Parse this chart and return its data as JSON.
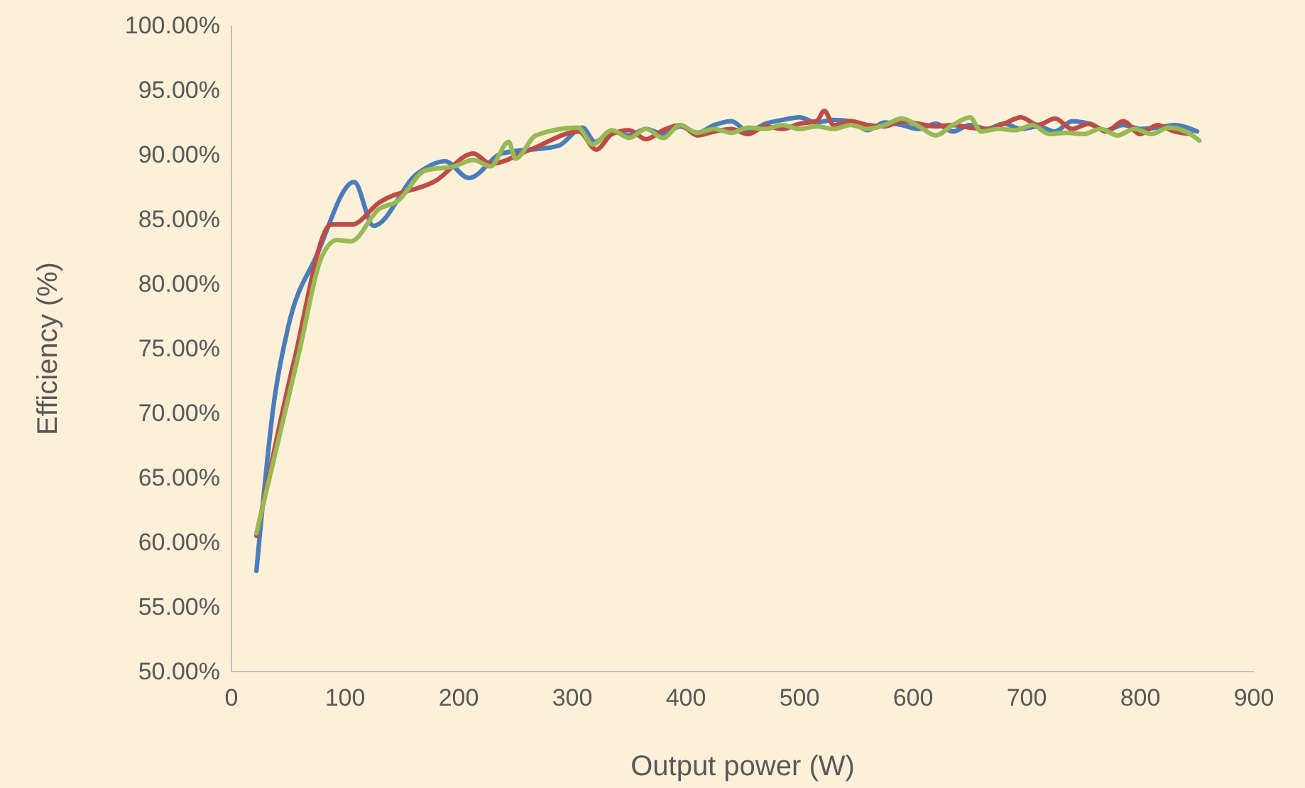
{
  "chart_data": {
    "type": "line",
    "xlabel": "Output power (W)",
    "ylabel": "Efficiency (%)",
    "xlim": [
      0,
      900
    ],
    "xticks": [
      0,
      100,
      200,
      300,
      400,
      500,
      600,
      700,
      800,
      900
    ],
    "ylim": [
      50,
      100
    ],
    "yticks": [
      {
        "value": 50,
        "label": "50.00%"
      },
      {
        "value": 55,
        "label": "55.00%"
      },
      {
        "value": 60,
        "label": "60.00%"
      },
      {
        "value": 65,
        "label": "65.00%"
      },
      {
        "value": 70,
        "label": "70.00%"
      },
      {
        "value": 75,
        "label": "75.00%"
      },
      {
        "value": 80,
        "label": "80.00%"
      },
      {
        "value": 85,
        "label": "85.00%"
      },
      {
        "value": 90,
        "label": "90.00%"
      },
      {
        "value": 95,
        "label": "95.00%"
      },
      {
        "value": 100,
        "label": "100.00%"
      }
    ],
    "grid": false,
    "marker": "none",
    "line_style": "solid",
    "series": [
      {
        "color": "#4a7ebb",
        "x": [
          22,
          38,
          50,
          75,
          108,
          125,
          163,
          188,
          209,
          238,
          288,
          309,
          320,
          335,
          350,
          365,
          380,
          395,
          410,
          425,
          440,
          455,
          470,
          485,
          500,
          515,
          530,
          545,
          560,
          575,
          590,
          605,
          620,
          635,
          650,
          665,
          680,
          695,
          710,
          725,
          740,
          755,
          770,
          785,
          800,
          815,
          830,
          850
        ],
        "values": [
          57.8,
          71.2,
          76.7,
          82.2,
          87.9,
          84.5,
          88.5,
          89.5,
          88.2,
          90.1,
          90.7,
          92.1,
          91.0,
          91.8,
          91.5,
          92.0,
          91.6,
          92.2,
          91.7,
          92.3,
          92.6,
          91.8,
          92.4,
          92.7,
          92.9,
          92.5,
          92.7,
          92.6,
          91.9,
          92.5,
          92.3,
          92.0,
          92.4,
          91.8,
          92.3,
          92.0,
          92.4,
          92.0,
          92.2,
          91.8,
          92.6,
          92.4,
          91.9,
          92.3,
          92.0,
          92.1,
          92.3,
          91.8
        ]
      },
      {
        "color": "#be4b48",
        "x": [
          22,
          55,
          88,
          106,
          130,
          180,
          213,
          228,
          263,
          306,
          321,
          335,
          350,
          365,
          380,
          395,
          410,
          425,
          440,
          455,
          470,
          485,
          500,
          515,
          522,
          530,
          545,
          560,
          575,
          590,
          605,
          620,
          635,
          650,
          665,
          680,
          695,
          710,
          725,
          740,
          755,
          770,
          785,
          800,
          815,
          830,
          845
        ],
        "values": [
          60.5,
          74.0,
          84.6,
          84.6,
          86.3,
          88.0,
          90.1,
          89.3,
          90.4,
          91.8,
          90.4,
          91.6,
          91.9,
          91.2,
          91.9,
          92.3,
          91.5,
          91.8,
          92.0,
          91.6,
          92.2,
          92.0,
          92.4,
          92.6,
          93.4,
          92.3,
          92.6,
          92.3,
          92.2,
          92.6,
          92.4,
          92.2,
          92.3,
          92.1,
          92.0,
          92.4,
          92.9,
          92.3,
          92.8,
          92.0,
          92.4,
          91.8,
          92.6,
          91.6,
          92.3,
          91.8,
          91.6
        ]
      },
      {
        "color": "#98b954",
        "x": [
          22,
          59,
          80,
          93,
          105,
          130,
          146,
          171,
          196,
          213,
          228,
          244,
          250,
          268,
          305,
          318,
          335,
          350,
          365,
          380,
          395,
          410,
          425,
          440,
          455,
          470,
          485,
          500,
          515,
          530,
          545,
          560,
          575,
          590,
          605,
          620,
          635,
          650,
          660,
          675,
          690,
          705,
          720,
          735,
          750,
          765,
          780,
          795,
          810,
          825,
          840,
          852
        ],
        "values": [
          60.7,
          74.5,
          82.2,
          83.4,
          83.3,
          85.8,
          86.4,
          88.8,
          89.1,
          89.6,
          89.1,
          91.0,
          89.7,
          91.5,
          92.1,
          90.8,
          91.9,
          91.3,
          92.0,
          91.3,
          92.3,
          91.7,
          92.0,
          91.7,
          92.1,
          92.0,
          92.3,
          92.0,
          92.2,
          92.0,
          92.3,
          92.0,
          92.3,
          92.8,
          92.2,
          91.5,
          92.3,
          92.9,
          91.8,
          92.0,
          91.9,
          92.3,
          91.6,
          91.7,
          91.6,
          92.0,
          91.5,
          92.0,
          91.6,
          92.1,
          91.8,
          91.1
        ]
      }
    ]
  }
}
